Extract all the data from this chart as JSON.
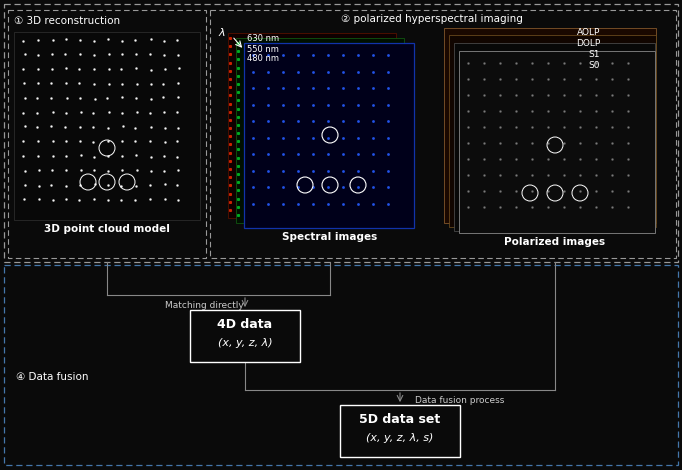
{
  "bg_color": "#0a0a0a",
  "section1_title": "① 3D reconstruction",
  "section2_title": "② polarized hyperspectral imaging",
  "section3_title": "④ Data fusion",
  "label_3d_point": "3D point cloud model",
  "label_spectral": "Spectral images",
  "label_polarized": "Polarized images",
  "box1_title": "4D data",
  "box1_subtitle": "(x, y, z, λ)",
  "box2_title": "5D data set",
  "box2_subtitle": "(x, y, z, λ, s)",
  "arrow1_label": "Matching directly",
  "arrow2_label": "Data fusion process",
  "wavelengths": [
    "630 nm",
    "550 nm",
    "480 nm"
  ],
  "polarizations": [
    "AOLP",
    "DOLP",
    "S1",
    "S0"
  ],
  "dashed_color_top": "#aaaaaa",
  "dashed_color_bottom": "#4477aa",
  "text_color": "#ffffff",
  "arrow_color": "#888888",
  "fig_w": 6.82,
  "fig_h": 4.7,
  "dpi": 100
}
